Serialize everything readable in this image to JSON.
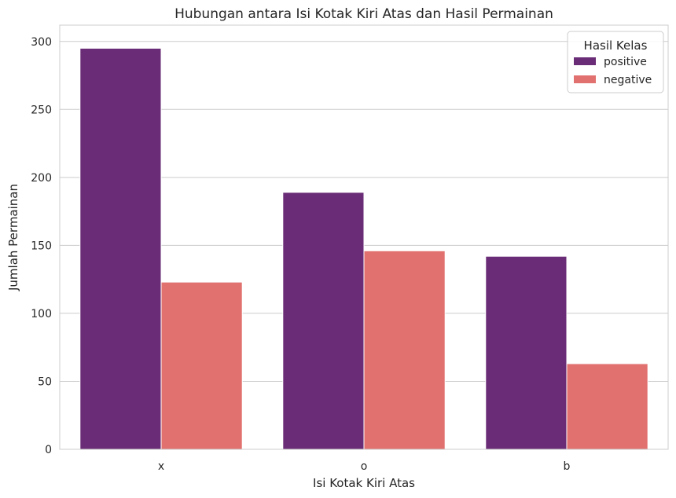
{
  "chart_data": {
    "type": "bar",
    "title": "Hubungan antara Isi Kotak Kiri Atas dan Hasil Permainan",
    "xlabel": "Isi Kotak Kiri Atas",
    "ylabel": "Jumlah Permainan",
    "categories": [
      "x",
      "o",
      "b"
    ],
    "series": [
      {
        "name": "positive",
        "values": [
          295,
          189,
          142
        ],
        "color": "#6a2c76"
      },
      {
        "name": "negative",
        "values": [
          123,
          146,
          63
        ],
        "color": "#e0716f"
      }
    ],
    "ylim": [
      0,
      312
    ],
    "yticks": [
      0,
      50,
      100,
      150,
      200,
      250,
      300
    ],
    "grid": "horizontal",
    "legend": {
      "title": "Hasil Kelas",
      "placement": "top-right"
    }
  }
}
